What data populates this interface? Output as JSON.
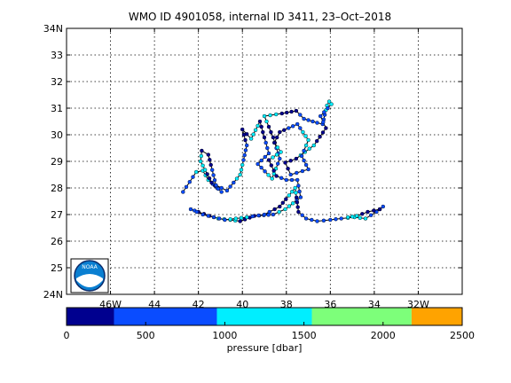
{
  "chart_data": {
    "type": "scatter",
    "title": "WMO ID 4901058, internal ID 3411, 23–Oct–2018",
    "map": {
      "lon_range": [
        -48,
        -30
      ],
      "lat_range": [
        24,
        34
      ],
      "x_ticks": [
        {
          "v": -46,
          "label": "46W"
        },
        {
          "v": -44,
          "label": "44"
        },
        {
          "v": -42,
          "label": "42"
        },
        {
          "v": -40,
          "label": "40"
        },
        {
          "v": -38,
          "label": "38"
        },
        {
          "v": -36,
          "label": "36"
        },
        {
          "v": -34,
          "label": "34"
        },
        {
          "v": -32,
          "label": "32W"
        }
      ],
      "y_ticks": [
        {
          "v": 24,
          "label": "24N"
        },
        {
          "v": 25,
          "label": "25"
        },
        {
          "v": 26,
          "label": "26"
        },
        {
          "v": 27,
          "label": "27"
        },
        {
          "v": 28,
          "label": "28"
        },
        {
          "v": 29,
          "label": "29"
        },
        {
          "v": 30,
          "label": "30"
        },
        {
          "v": 31,
          "label": "31"
        },
        {
          "v": 32,
          "label": "32"
        },
        {
          "v": 33,
          "label": "33"
        },
        {
          "v": 34,
          "label": "34N"
        }
      ],
      "grid": true,
      "line_color": "#000000",
      "logo_text": "NOAA",
      "trajectory": [
        [
          -42.7,
          27.85
        ],
        [
          -42.1,
          28.6
        ],
        [
          -41.8,
          28.65
        ],
        [
          -41.55,
          28.3
        ],
        [
          -40.95,
          27.85
        ],
        [
          -41.4,
          28.2
        ],
        [
          -41.9,
          29.0
        ],
        [
          -41.85,
          29.4
        ],
        [
          -41.55,
          29.25
        ],
        [
          -41.2,
          28.1
        ],
        [
          -40.7,
          27.9
        ],
        [
          -40.1,
          28.5
        ],
        [
          -39.8,
          29.6
        ],
        [
          -40.0,
          30.2
        ],
        [
          -39.6,
          29.85
        ],
        [
          -39.2,
          30.5
        ],
        [
          -38.8,
          29.3
        ],
        [
          -39.3,
          28.9
        ],
        [
          -38.65,
          28.35
        ],
        [
          -38.3,
          29.1
        ],
        [
          -38.6,
          29.9
        ],
        [
          -39.0,
          30.7
        ],
        [
          -38.2,
          30.8
        ],
        [
          -37.55,
          30.9
        ],
        [
          -37.2,
          30.6
        ],
        [
          -36.6,
          30.45
        ],
        [
          -36.35,
          30.4
        ],
        [
          -36.15,
          31.1
        ],
        [
          -36.05,
          31.25
        ],
        [
          -35.95,
          31.15
        ],
        [
          -36.45,
          30.7
        ],
        [
          -36.2,
          30.25
        ],
        [
          -36.75,
          29.6
        ],
        [
          -37.55,
          29.1
        ],
        [
          -38.05,
          28.95
        ],
        [
          -37.8,
          28.5
        ],
        [
          -37.0,
          28.7
        ],
        [
          -37.3,
          29.2
        ],
        [
          -37.0,
          29.8
        ],
        [
          -37.5,
          30.4
        ],
        [
          -38.3,
          30.1
        ],
        [
          -38.55,
          29.7
        ],
        [
          -38.25,
          29.35
        ],
        [
          -38.8,
          29.05
        ],
        [
          -38.45,
          28.45
        ],
        [
          -38.0,
          28.3
        ],
        [
          -37.5,
          28.3
        ],
        [
          -37.35,
          27.65
        ],
        [
          -38.05,
          27.2
        ],
        [
          -38.6,
          27.0
        ],
        [
          -39.45,
          26.95
        ],
        [
          -40.1,
          26.75
        ],
        [
          -40.55,
          26.8
        ],
        [
          -41.1,
          26.85
        ],
        [
          -41.5,
          26.95
        ],
        [
          -42.0,
          27.1
        ],
        [
          -42.35,
          27.2
        ],
        [
          -41.8,
          27.0
        ],
        [
          -40.8,
          26.8
        ],
        [
          -39.8,
          26.9
        ],
        [
          -39.0,
          27.0
        ],
        [
          -38.3,
          27.3
        ],
        [
          -37.6,
          28.0
        ],
        [
          -37.45,
          27.1
        ],
        [
          -37.1,
          26.85
        ],
        [
          -36.6,
          26.75
        ],
        [
          -36.0,
          26.8
        ],
        [
          -35.5,
          26.85
        ],
        [
          -34.9,
          26.9
        ],
        [
          -34.4,
          26.85
        ],
        [
          -33.9,
          27.1
        ],
        [
          -33.6,
          27.3
        ],
        [
          -33.75,
          27.2
        ],
        [
          -34.3,
          27.1
        ],
        [
          -34.8,
          26.95
        ],
        [
          -35.2,
          26.9
        ]
      ]
    },
    "colorbar": {
      "label": "pressure [dbar]",
      "min": 0,
      "max": 2500,
      "ticks": [
        "0",
        "500",
        "1000",
        "1500",
        "2000",
        "2500"
      ],
      "bins": [
        {
          "from": 0,
          "to": 300,
          "color": "#00008f"
        },
        {
          "from": 300,
          "to": 950,
          "color": "#0a4cff"
        },
        {
          "from": 950,
          "to": 1550,
          "color": "#00eeff"
        },
        {
          "from": 1550,
          "to": 2180,
          "color": "#7dff7a"
        },
        {
          "from": 2180,
          "to": 2500,
          "color": "#ffa300"
        }
      ]
    }
  }
}
